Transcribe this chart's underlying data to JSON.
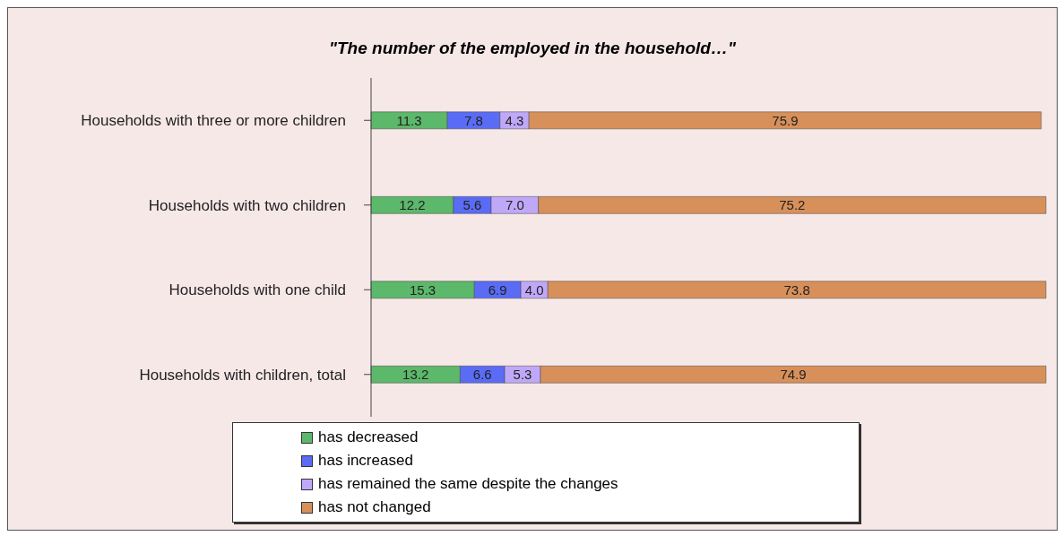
{
  "chart_data": {
    "type": "bar",
    "orientation": "horizontal",
    "stacked": true,
    "title": "\"The number of the employed in the household…\"",
    "categories": [
      "Households with three or more children",
      "Households with two children",
      "Households with one child",
      "Households with children, total"
    ],
    "series": [
      {
        "name": "has decreased",
        "color": "#5cb86a",
        "values": [
          11.3,
          12.2,
          15.3,
          13.2
        ],
        "value_labels": [
          "11.3",
          "12.2",
          "15.3",
          "13.2"
        ]
      },
      {
        "name": "has increased",
        "color": "#5a6cf5",
        "values": [
          7.8,
          5.6,
          6.9,
          6.6
        ],
        "value_labels": [
          "7.8",
          "5.6",
          "6.9",
          "6.6"
        ]
      },
      {
        "name": "has remained the same despite the changes",
        "color": "#c0a8f8",
        "values": [
          4.3,
          7.0,
          4.0,
          5.3
        ],
        "value_labels": [
          "4.3",
          "7.0",
          "4.0",
          "5.3"
        ]
      },
      {
        "name": "has not changed",
        "color": "#d8905a",
        "values": [
          75.9,
          75.2,
          73.8,
          74.9
        ],
        "value_labels": [
          "75.9",
          "75.2",
          "73.8",
          "74.9"
        ]
      }
    ],
    "legend": "bottom"
  }
}
